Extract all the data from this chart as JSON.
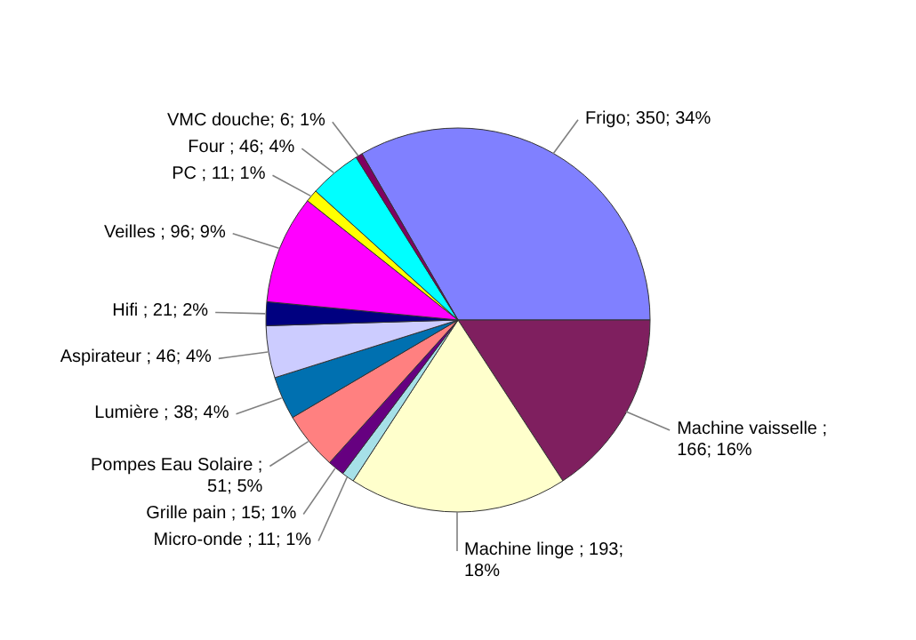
{
  "chart_data": {
    "type": "pie",
    "categories": [
      "Frigo",
      "Machine vaisselle",
      "Machine linge",
      "Micro-onde",
      "Grille pain",
      "Pompes Eau Solaire",
      "Lumière",
      "Aspirateur",
      "Hifi",
      "Veilles",
      "PC",
      "Four",
      "VMC douche"
    ],
    "values": [
      350,
      166,
      193,
      11,
      15,
      51,
      38,
      46,
      21,
      96,
      11,
      46,
      6
    ],
    "colors": [
      "#8080ff",
      "#7f1f5f",
      "#ffffcc",
      "#a6e0e8",
      "#660080",
      "#ff8080",
      "#0070b0",
      "#ccccff",
      "#000080",
      "#ff00ff",
      "#ffff00",
      "#00ffff",
      "#800060"
    ],
    "value_labels": [
      "; 350; 34%",
      " ;\n166; 16%",
      " ; 193;\n18%",
      " ; 11; 1%",
      " ; 15; 1%",
      " ;\n51; 5%",
      " ; 38; 4%",
      " ; 46; 4%",
      " ; 21; 2%",
      " ; 96; 9%",
      " ; 11; 1%",
      " ; 46; 4%",
      "; 6; 1%"
    ]
  }
}
